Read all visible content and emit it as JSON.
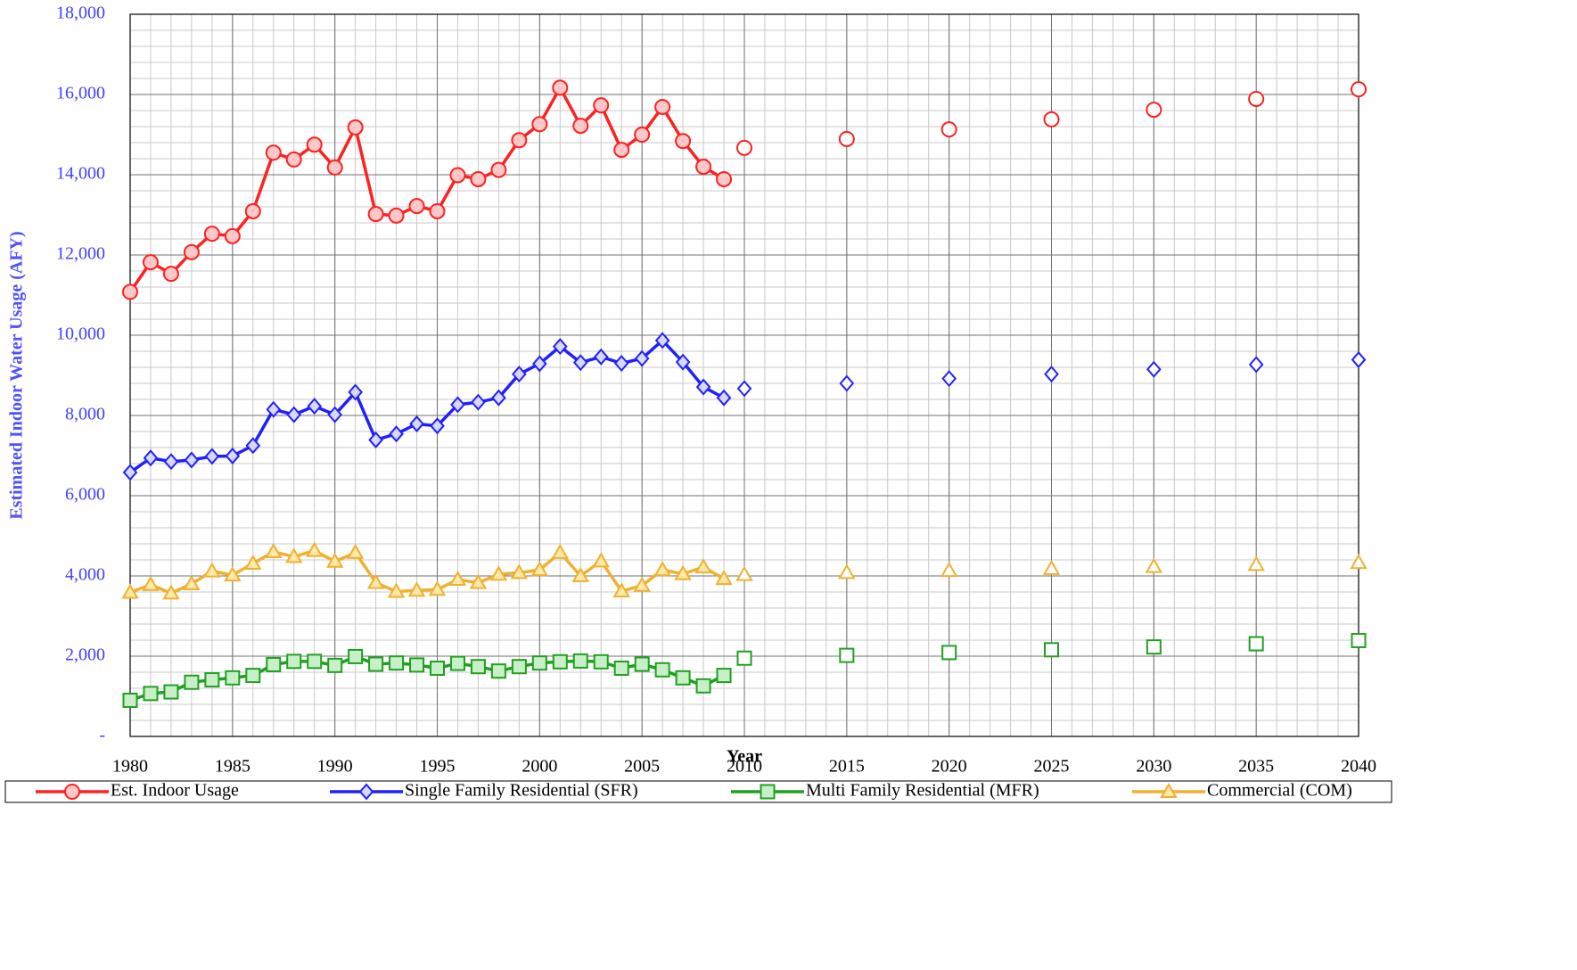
{
  "chart_data": {
    "type": "line",
    "x_label": "Year",
    "y_label": "Estimated Indoor Water Usage (AFY)",
    "xlim": [
      1980,
      2040
    ],
    "xticks": [
      1980,
      1985,
      1990,
      1995,
      2000,
      2005,
      2010,
      2015,
      2020,
      2025,
      2030,
      2035,
      2040
    ],
    "ylim": [
      0,
      18000
    ],
    "yticks": [
      {
        "value": 0,
        "label": "-"
      },
      {
        "value": 2000,
        "label": "2,000"
      },
      {
        "value": 4000,
        "label": "4,000"
      },
      {
        "value": 6000,
        "label": "6,000"
      },
      {
        "value": 8000,
        "label": "8,000"
      },
      {
        "value": 10000,
        "label": "10,000"
      },
      {
        "value": 12000,
        "label": "12,000"
      },
      {
        "value": 14000,
        "label": "14,000"
      },
      {
        "value": 16000,
        "label": "16,000"
      },
      {
        "value": 18000,
        "label": "18,000"
      }
    ],
    "grid": true,
    "minor_grid": {
      "x_step": 1,
      "y_step": 400
    },
    "legend": "bottom",
    "x": [
      1980,
      1981,
      1982,
      1983,
      1984,
      1985,
      1986,
      1987,
      1988,
      1989,
      1990,
      1991,
      1992,
      1993,
      1994,
      1995,
      1996,
      1997,
      1998,
      1999,
      2000,
      2001,
      2002,
      2003,
      2004,
      2005,
      2006,
      2007,
      2008,
      2009
    ],
    "x_projection": [
      2010,
      2015,
      2020,
      2025,
      2030,
      2035,
      2040
    ],
    "series": [
      {
        "name": "Est. Indoor Usage",
        "color": "#ff2020",
        "fill": "#ffc8c8",
        "marker": "circle",
        "values": [
          11080,
          11820,
          11530,
          12070,
          12530,
          12470,
          13090,
          14550,
          14380,
          14750,
          14180,
          15180,
          13020,
          12980,
          13220,
          13090,
          13990,
          13890,
          14120,
          14860,
          15260,
          16170,
          15220,
          15730,
          14620,
          15000,
          15690,
          14840,
          14200,
          13890
        ],
        "projection": [
          14670,
          14890,
          15130,
          15380,
          15620,
          15890,
          16130
        ]
      },
      {
        "name": "Single Family Residential (SFR)",
        "color": "#2020ff",
        "fill": "#d8d8ff",
        "marker": "diamond",
        "values": [
          6580,
          6940,
          6850,
          6890,
          6980,
          6990,
          7250,
          8150,
          8020,
          8230,
          8020,
          8580,
          7390,
          7540,
          7790,
          7740,
          8270,
          8330,
          8440,
          9030,
          9290,
          9720,
          9320,
          9460,
          9300,
          9420,
          9870,
          9330,
          8710,
          8440
        ],
        "projection": [
          8670,
          8800,
          8920,
          9030,
          9150,
          9270,
          9390
        ]
      },
      {
        "name": "Multi Family Residential (MFR)",
        "color": "#20a020",
        "fill": "#c8f0c8",
        "marker": "square",
        "values": [
          900,
          1070,
          1110,
          1350,
          1410,
          1460,
          1520,
          1790,
          1870,
          1870,
          1770,
          1990,
          1800,
          1830,
          1780,
          1700,
          1820,
          1740,
          1630,
          1740,
          1830,
          1860,
          1880,
          1860,
          1700,
          1800,
          1660,
          1460,
          1260,
          1520
        ],
        "projection": [
          1950,
          2020,
          2090,
          2160,
          2230,
          2310,
          2390
        ]
      },
      {
        "name": "Commercial (COM)",
        "color": "#f0b030",
        "fill": "#ffe8a8",
        "marker": "triangle",
        "values": [
          3590,
          3780,
          3570,
          3800,
          4120,
          4020,
          4310,
          4600,
          4480,
          4630,
          4360,
          4580,
          3830,
          3610,
          3640,
          3660,
          3910,
          3830,
          4040,
          4080,
          4150,
          4580,
          4000,
          4370,
          3620,
          3760,
          4150,
          4050,
          4220,
          3930
        ],
        "projection": [
          4030,
          4080,
          4130,
          4180,
          4230,
          4280,
          4330
        ]
      }
    ]
  }
}
